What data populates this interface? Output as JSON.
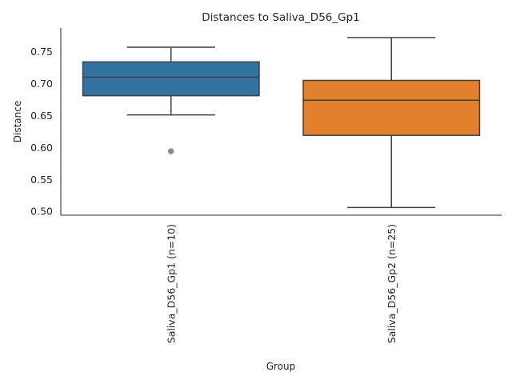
{
  "chart_data": {
    "type": "box",
    "title": "Distances to Saliva_D56_Gp1",
    "xlabel": "Group",
    "ylabel": "Distance",
    "ylim": [
      0.494,
      0.787
    ],
    "yticks": [
      "0.50",
      "0.55",
      "0.60",
      "0.65",
      "0.70",
      "0.75"
    ],
    "grid": false,
    "groups": [
      {
        "label": "Saliva_D56_Gp1 (n=10)",
        "color": "#3274a1",
        "whisker_low": 0.651,
        "q1": 0.681,
        "median": 0.71,
        "q3": 0.734,
        "whisker_high": 0.757,
        "outliers": [
          0.594
        ]
      },
      {
        "label": "Saliva_D56_Gp2 (n=25)",
        "color": "#e1812c",
        "whisker_low": 0.506,
        "q1": 0.619,
        "median": 0.674,
        "q3": 0.705,
        "whisker_high": 0.772,
        "outliers": []
      }
    ]
  }
}
